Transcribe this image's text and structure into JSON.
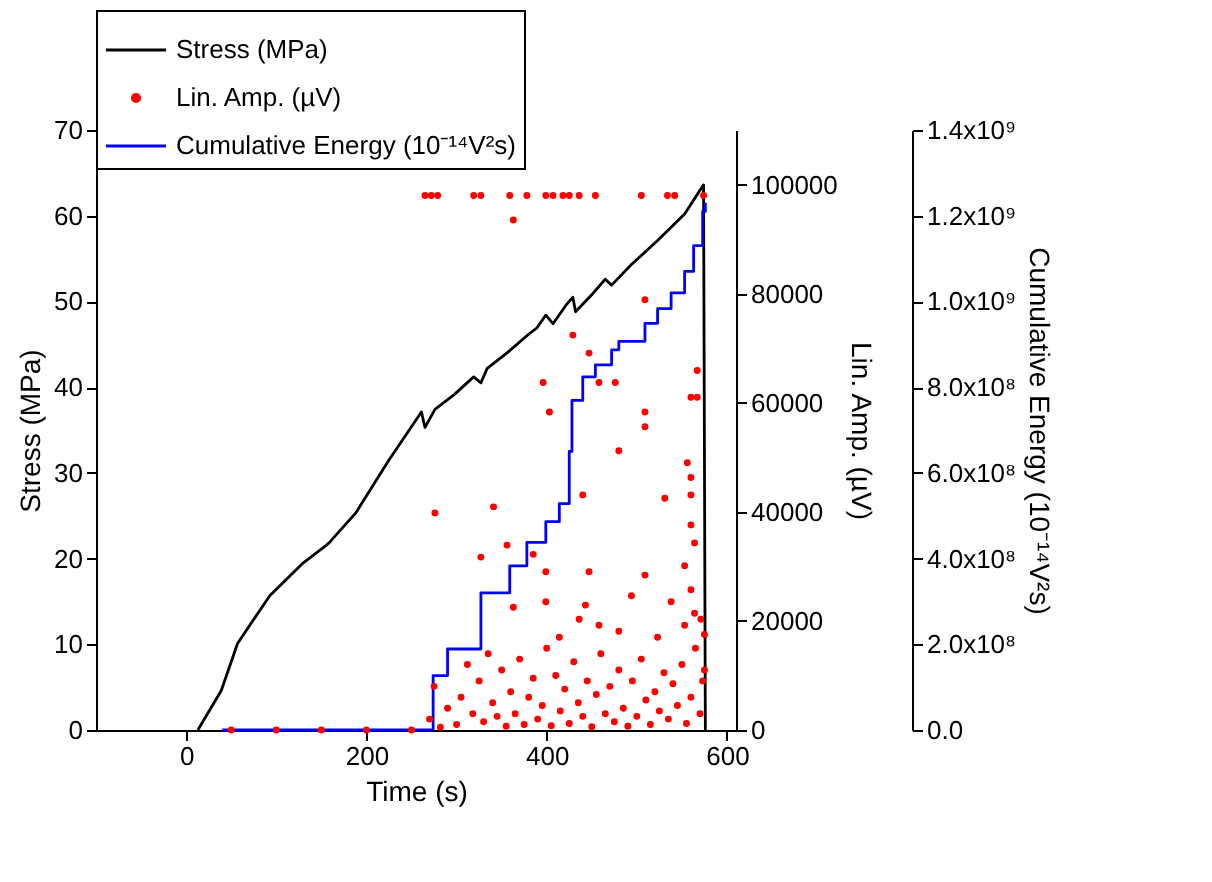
{
  "chart_data": {
    "type": "line",
    "xlabel": "Time (s)",
    "ylabel": "Stress (MPa)",
    "y2label": "Lin. Amp. (µV)",
    "y3label": "Cumulative Energy (10⁻¹⁴V²s)",
    "xlim": [
      -100,
      610
    ],
    "xticks": [
      0,
      200,
      400,
      600
    ],
    "ylim": [
      0,
      70
    ],
    "yticks": [
      0,
      10,
      20,
      30,
      40,
      50,
      60,
      70
    ],
    "y2lim": [
      0,
      110000
    ],
    "y2ticks": [
      0,
      20000,
      40000,
      60000,
      80000,
      100000
    ],
    "y3lim": [
      0,
      1400000000
    ],
    "y3ticks": [
      {
        "value": 0,
        "label": "0.0"
      },
      {
        "value": 200000000,
        "label": "2.0x10⁸"
      },
      {
        "value": 400000000,
        "label": "4.0x10⁸"
      },
      {
        "value": 600000000,
        "label": "6.0x10⁸"
      },
      {
        "value": 800000000,
        "label": "8.0x10⁸"
      },
      {
        "value": 1000000000,
        "label": "1.0x10⁹"
      },
      {
        "value": 1200000000,
        "label": "1.2x10⁹"
      },
      {
        "value": 1400000000,
        "label": "1.4x10⁹"
      }
    ],
    "legend": "top left",
    "line_style": "solid",
    "series": [
      {
        "name": "Stress (MPa)",
        "type": "line",
        "color": "#000000",
        "x": [
          13,
          39,
          57,
          93,
          130,
          155,
          160,
          188,
          225,
          261,
          265,
          276,
          297,
          319,
          327,
          334,
          356,
          378,
          389,
          399,
          407,
          421,
          429,
          432,
          451,
          465,
          472,
          494,
          523,
          553,
          574,
          576
        ],
        "values": [
          0,
          4.6,
          10.1,
          15.7,
          19.5,
          21.5,
          22.0,
          25.3,
          31.5,
          37.1,
          35.3,
          37.4,
          39.1,
          41.2,
          40.5,
          42.2,
          44.0,
          46.0,
          46.9,
          48.4,
          47.4,
          49.5,
          50.5,
          48.8,
          50.9,
          52.6,
          51.9,
          54.3,
          57.1,
          60.2,
          63.6,
          0
        ]
      },
      {
        "name": "Lin. Amp. (µV)",
        "type": "scatter",
        "marker": "circle",
        "axis": "y2",
        "color": "#ff0000",
        "x": [
          50,
          100,
          150,
          200,
          250,
          265,
          272,
          279,
          319,
          327,
          359,
          378,
          399,
          407,
          418,
          425,
          436,
          454,
          505,
          534,
          542,
          574,
          363,
          509,
          429,
          447,
          396,
          458,
          476,
          567,
          567,
          560,
          403,
          509,
          509,
          480,
          556,
          560,
          276,
          341,
          440,
          531,
          560,
          356,
          560,
          564,
          385,
          399,
          327,
          447,
          509,
          560,
          553,
          363,
          399,
          443,
          494,
          538,
          564,
          436,
          458,
          414,
          480,
          523,
          553,
          571,
          270,
          275,
          282,
          290,
          300,
          305,
          312,
          318,
          325,
          330,
          335,
          340,
          345,
          350,
          355,
          360,
          365,
          370,
          375,
          380,
          385,
          390,
          395,
          400,
          405,
          410,
          415,
          420,
          425,
          430,
          435,
          440,
          445,
          450,
          455,
          460,
          465,
          470,
          475,
          480,
          485,
          490,
          495,
          500,
          505,
          510,
          515,
          520,
          525,
          530,
          535,
          540,
          545,
          550,
          555,
          560,
          565,
          570,
          573,
          575,
          575
        ],
        "values": [
          0,
          0,
          0,
          0,
          0,
          98000,
          98000,
          98000,
          98000,
          98000,
          98000,
          98000,
          98000,
          98000,
          98000,
          98000,
          98000,
          98000,
          98000,
          98000,
          98000,
          98000,
          93500,
          78900,
          72400,
          69100,
          63700,
          63700,
          63700,
          65900,
          61000,
          61000,
          58300,
          58300,
          55600,
          51200,
          49000,
          46300,
          39800,
          40900,
          43100,
          42500,
          43100,
          33900,
          37600,
          34300,
          32200,
          29000,
          31700,
          29000,
          28400,
          25700,
          30100,
          22500,
          23500,
          22900,
          24600,
          23500,
          21400,
          20300,
          19200,
          17000,
          18100,
          17000,
          19200,
          20300,
          2000,
          8000,
          500,
          4000,
          1000,
          6000,
          12000,
          3000,
          9000,
          1500,
          14000,
          5000,
          2500,
          11000,
          700,
          7000,
          3000,
          13000,
          1000,
          6000,
          9500,
          2000,
          4500,
          15000,
          800,
          10000,
          3500,
          7500,
          1200,
          12500,
          5000,
          2500,
          9000,
          600,
          6500,
          14000,
          3000,
          8000,
          1500,
          11000,
          4000,
          700,
          9000,
          2500,
          13000,
          5500,
          1000,
          7000,
          3500,
          10500,
          2000,
          8500,
          4500,
          12000,
          1200,
          6000,
          15000,
          3000,
          9000,
          11000,
          17500
        ]
      },
      {
        "name": "Cumulative Energy (10⁻¹⁴V²s)",
        "type": "step",
        "axis": "y3",
        "color": "#0000ff",
        "x": [
          40,
          274,
          290,
          327,
          359,
          378,
          399,
          414,
          425,
          428,
          440,
          454,
          472,
          480,
          509,
          523,
          538,
          553,
          563,
          573,
          576
        ],
        "values": [
          0,
          127000000,
          189000000,
          320000000,
          383000000,
          438000000,
          486000000,
          528000000,
          650000000,
          769000000,
          824000000,
          852000000,
          887000000,
          907000000,
          949000000,
          983000000,
          1020000000,
          1070000000,
          1130000000,
          1210000000,
          1230000000
        ]
      }
    ]
  }
}
